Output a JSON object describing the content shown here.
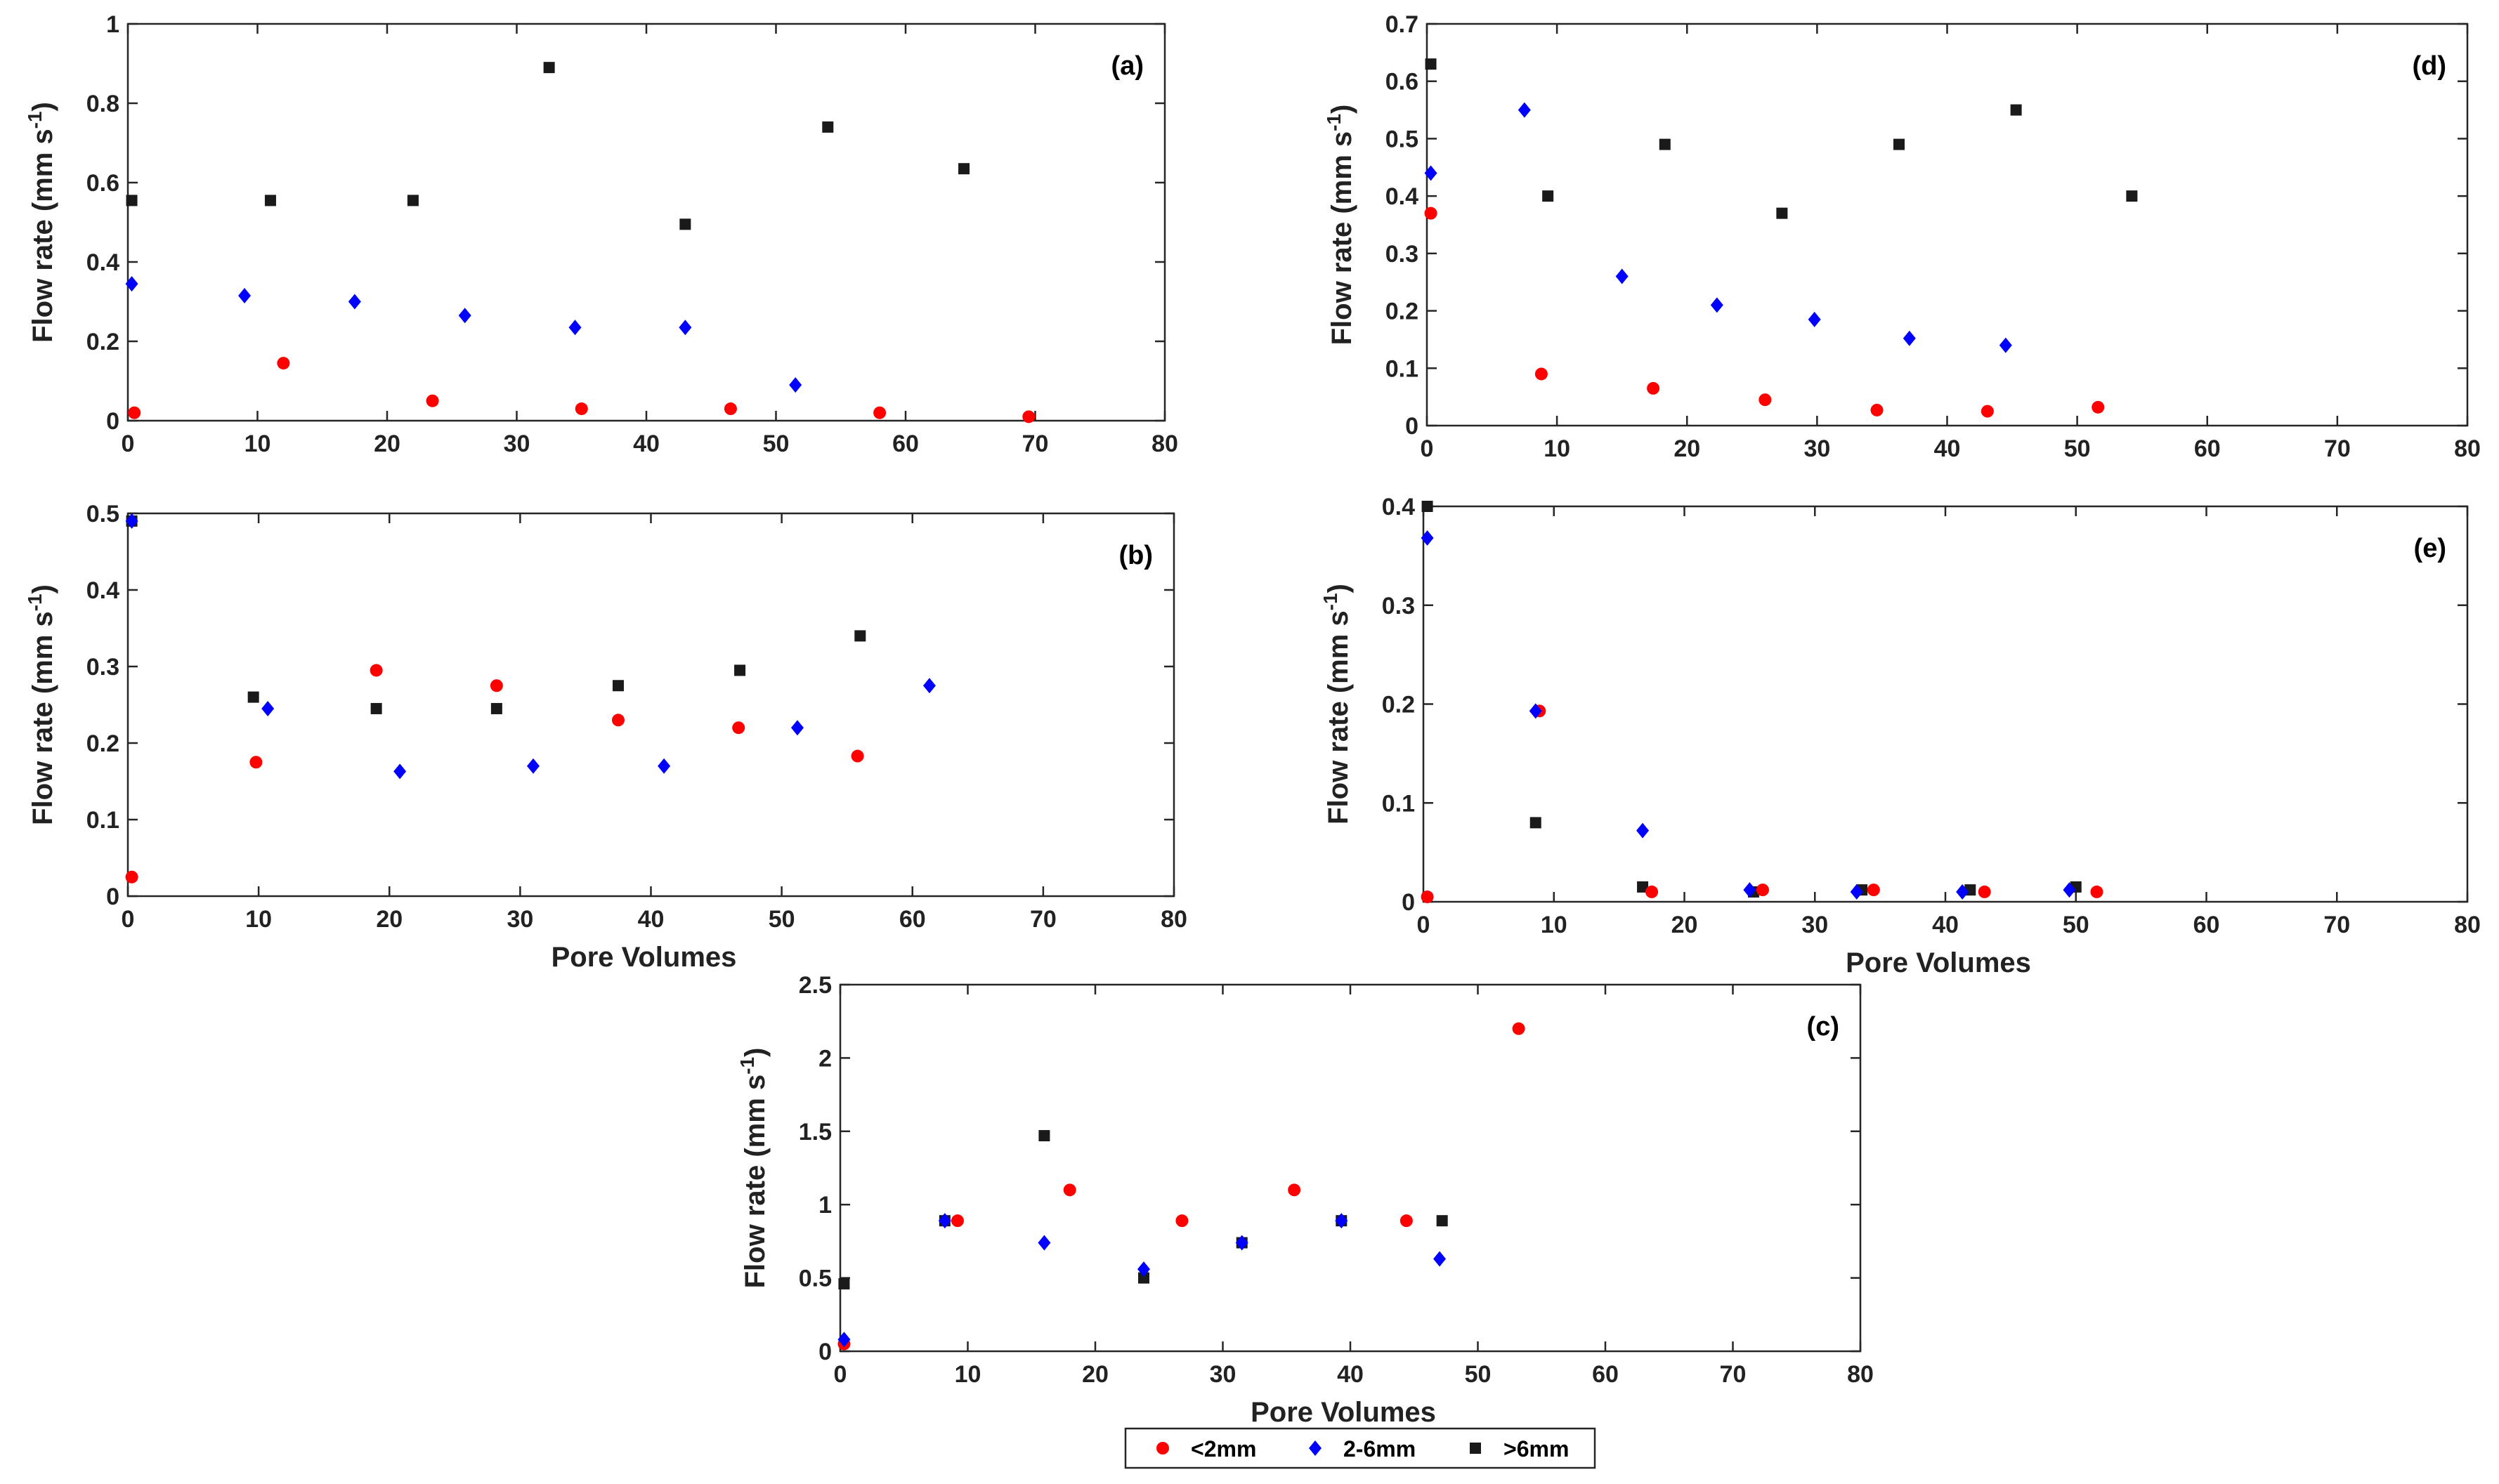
{
  "legend": {
    "entries": [
      {
        "name": "<2mm",
        "color": "#ff0000",
        "marker": "circle"
      },
      {
        "name": "2-6mm",
        "color": "#0000ff",
        "marker": "diamond"
      },
      {
        "name": ">6mm",
        "color": "#1a1a1a",
        "marker": "square"
      }
    ]
  },
  "chart_data": [
    {
      "type": "scatter",
      "panel": "(a)",
      "xlabel": "",
      "ylabel": "Flow rate (mm s-1)",
      "xlim": [
        0,
        80
      ],
      "ylim": [
        0,
        1
      ],
      "xticks": [
        0,
        10,
        20,
        30,
        40,
        50,
        60,
        70,
        80
      ],
      "yticks": [
        0,
        0.2,
        0.4,
        0.6,
        0.8,
        1
      ],
      "ytick_labels": [
        "0",
        "0.2",
        "0.4",
        "0.6",
        "0.8",
        "1"
      ],
      "series": [
        {
          "name": "<2mm",
          "x": [
            0.5,
            12,
            23.5,
            35,
            46.5,
            58,
            69.5
          ],
          "y": [
            0.02,
            0.145,
            0.05,
            0.03,
            0.03,
            0.02,
            0.01
          ]
        },
        {
          "name": "2-6mm",
          "x": [
            0.3,
            9,
            17.5,
            26,
            34.5,
            43,
            51.5
          ],
          "y": [
            0.345,
            0.315,
            0.3,
            0.265,
            0.235,
            0.235,
            0.09
          ]
        },
        {
          "name": ">6mm",
          "x": [
            0.3,
            11,
            22,
            32.5,
            43,
            54,
            64.5
          ],
          "y": [
            0.555,
            0.555,
            0.555,
            0.89,
            0.495,
            0.74,
            0.635
          ]
        }
      ]
    },
    {
      "type": "scatter",
      "panel": "(b)",
      "xlabel": "Pore Volumes",
      "ylabel": "Flow rate (mm s-1)",
      "xlim": [
        0,
        80
      ],
      "ylim": [
        0,
        0.5
      ],
      "xticks": [
        0,
        10,
        20,
        30,
        40,
        50,
        60,
        70,
        80
      ],
      "yticks": [
        0,
        0.1,
        0.2,
        0.3,
        0.4,
        0.5
      ],
      "ytick_labels": [
        "0",
        "0.1",
        "0.2",
        "0.3",
        "0.4",
        "0.5"
      ],
      "series": [
        {
          "name": "<2mm",
          "x": [
            0.3,
            9.8,
            19,
            28.2,
            37.5,
            46.7,
            55.8
          ],
          "y": [
            0.025,
            0.175,
            0.295,
            0.275,
            0.23,
            0.22,
            0.183
          ]
        },
        {
          "name": "2-6mm",
          "x": [
            0.3,
            10.7,
            20.8,
            31,
            41,
            51.2,
            61.3
          ],
          "y": [
            0.49,
            0.245,
            0.163,
            0.17,
            0.17,
            0.22,
            0.275
          ]
        },
        {
          "name": ">6mm",
          "x": [
            0.3,
            9.6,
            19,
            28.2,
            37.5,
            46.8,
            56
          ],
          "y": [
            0.49,
            0.26,
            0.245,
            0.245,
            0.275,
            0.295,
            0.34
          ]
        }
      ]
    },
    {
      "type": "scatter",
      "panel": "(c)",
      "xlabel": "Pore Volumes",
      "ylabel": "Flow rate (mm s-1)",
      "xlim": [
        0,
        80
      ],
      "ylim": [
        0,
        2.5
      ],
      "xticks": [
        0,
        10,
        20,
        30,
        40,
        50,
        60,
        70,
        80
      ],
      "yticks": [
        0,
        0.5,
        1,
        1.5,
        2,
        2.5
      ],
      "ytick_labels": [
        "0",
        "0.5",
        "1",
        "1.5",
        "2",
        "2.5"
      ],
      "series": [
        {
          "name": "<2mm",
          "x": [
            0.3,
            9.2,
            18,
            26.8,
            35.6,
            44.4,
            53.2
          ],
          "y": [
            0.05,
            0.89,
            1.1,
            0.89,
            1.1,
            0.89,
            2.2
          ]
        },
        {
          "name": "2-6mm",
          "x": [
            0.3,
            8.2,
            16,
            23.8,
            31.5,
            39.3,
            47
          ],
          "y": [
            0.08,
            0.89,
            0.74,
            0.56,
            0.74,
            0.89,
            0.63
          ]
        },
        {
          "name": ">6mm",
          "x": [
            0.3,
            8.2,
            16,
            23.8,
            31.5,
            39.3,
            47.2
          ],
          "y": [
            0.46,
            0.89,
            1.47,
            0.5,
            0.74,
            0.89,
            0.89
          ]
        }
      ]
    },
    {
      "type": "scatter",
      "panel": "(d)",
      "xlabel": "",
      "ylabel": "Flow rate (mm s-1)",
      "xlim": [
        0,
        80
      ],
      "ylim": [
        0,
        0.7
      ],
      "xticks": [
        0,
        10,
        20,
        30,
        40,
        50,
        60,
        70,
        80
      ],
      "yticks": [
        0,
        0.1,
        0.2,
        0.3,
        0.4,
        0.5,
        0.6,
        0.7
      ],
      "ytick_labels": [
        "0",
        "0.1",
        "0.2",
        "0.3",
        "0.4",
        "0.5",
        "0.6",
        "0.7"
      ],
      "series": [
        {
          "name": "<2mm",
          "x": [
            0.3,
            8.8,
            17.4,
            26,
            34.6,
            43.1,
            51.6
          ],
          "y": [
            0.37,
            0.09,
            0.065,
            0.045,
            0.027,
            0.025,
            0.032
          ]
        },
        {
          "name": "2-6mm",
          "x": [
            0.3,
            7.5,
            15,
            22.3,
            29.8,
            37.1,
            44.5
          ],
          "y": [
            0.44,
            0.55,
            0.26,
            0.21,
            0.185,
            0.152,
            0.14
          ]
        },
        {
          "name": ">6mm",
          "x": [
            0.3,
            9.3,
            18.3,
            27.3,
            36.3,
            45.3,
            54.2
          ],
          "y": [
            0.63,
            0.4,
            0.49,
            0.37,
            0.49,
            0.55,
            0.4
          ]
        }
      ]
    },
    {
      "type": "scatter",
      "panel": "(e)",
      "xlabel": "Pore Volumes",
      "ylabel": "Flow rate (mm s-1)",
      "xlim": [
        0,
        80
      ],
      "ylim": [
        0,
        0.4
      ],
      "xticks": [
        0,
        10,
        20,
        30,
        40,
        50,
        60,
        70,
        80
      ],
      "yticks": [
        0,
        0.1,
        0.2,
        0.3,
        0.4
      ],
      "ytick_labels": [
        "0",
        "0.1",
        "0.2",
        "0.3",
        "0.4"
      ],
      "series": [
        {
          "name": "<2mm",
          "x": [
            0.3,
            8.9,
            17.5,
            26,
            34.5,
            43,
            51.6
          ],
          "y": [
            0.005,
            0.193,
            0.01,
            0.012,
            0.012,
            0.01,
            0.01
          ]
        },
        {
          "name": "2-6mm",
          "x": [
            0.3,
            8.6,
            16.8,
            25,
            33.2,
            41.3,
            49.5
          ],
          "y": [
            0.368,
            0.193,
            0.072,
            0.012,
            0.01,
            0.01,
            0.012
          ]
        },
        {
          "name": ">6mm",
          "x": [
            0.3,
            8.6,
            16.8,
            25.3,
            33.6,
            41.9,
            50
          ],
          "y": [
            0.4,
            0.08,
            0.015,
            0.01,
            0.012,
            0.012,
            0.015
          ]
        }
      ]
    }
  ]
}
